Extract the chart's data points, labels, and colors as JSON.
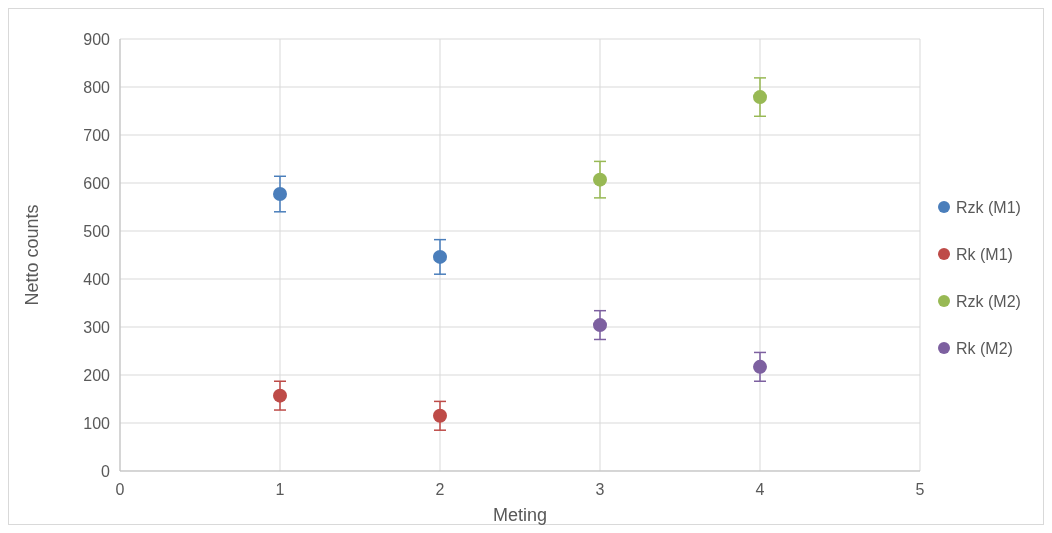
{
  "chart_data": {
    "type": "scatter",
    "xlabel": "Meting",
    "ylabel": "Netto counts",
    "xlim": [
      0,
      5
    ],
    "xticks": [
      0,
      1,
      2,
      3,
      4,
      5
    ],
    "ylim": [
      0,
      900
    ],
    "yticks": [
      0,
      100,
      200,
      300,
      400,
      500,
      600,
      700,
      800,
      900
    ],
    "grid": true,
    "legend": "right",
    "marker": "circle",
    "series": [
      {
        "name": "Rzk (M1)",
        "color": "#4a7ebb",
        "x": [
          1,
          2
        ],
        "values": [
          577,
          446
        ],
        "errors": [
          37,
          36
        ]
      },
      {
        "name": "Rk (M1)",
        "color": "#be4b48",
        "x": [
          1,
          2
        ],
        "values": [
          157,
          115
        ],
        "errors": [
          30,
          30
        ]
      },
      {
        "name": "Rzk (M2)",
        "color": "#98b954",
        "x": [
          3,
          4
        ],
        "values": [
          607,
          779
        ],
        "errors": [
          38,
          40
        ]
      },
      {
        "name": "Rk (M2)",
        "color": "#7d60a0",
        "x": [
          3,
          4
        ],
        "values": [
          304,
          217
        ],
        "errors": [
          30,
          30
        ]
      }
    ]
  }
}
